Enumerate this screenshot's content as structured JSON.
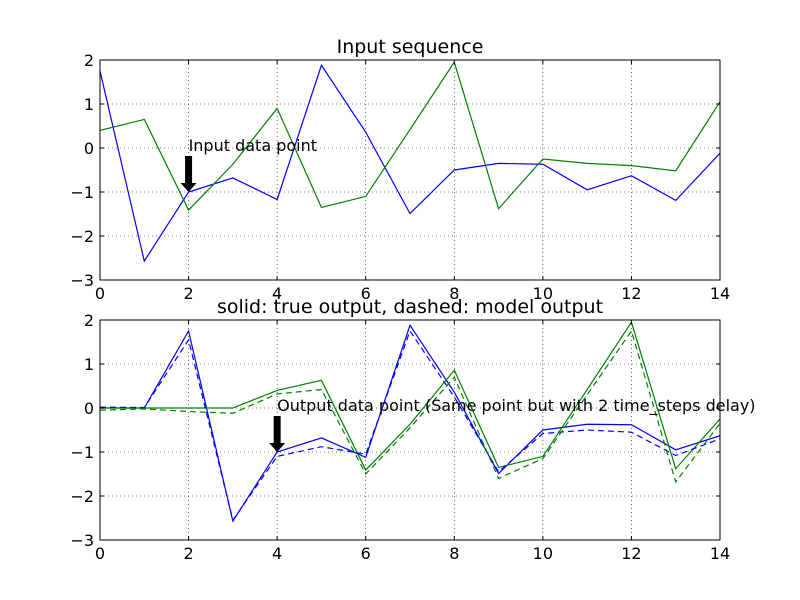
{
  "chart_data": [
    {
      "type": "line",
      "title": "Input sequence",
      "xlim": [
        0,
        14
      ],
      "ylim": [
        -3,
        2
      ],
      "xticks": [
        "0",
        "2",
        "4",
        "6",
        "8",
        "10",
        "12",
        "14"
      ],
      "yticks": [
        "−3",
        "−2",
        "−1",
        "0",
        "1",
        "2"
      ],
      "grid": true,
      "x": [
        0,
        1,
        2,
        3,
        4,
        5,
        6,
        7,
        8,
        9,
        10,
        11,
        12,
        13,
        14
      ],
      "series": [
        {
          "color": "#0000ff",
          "linestyle": "solid",
          "values": [
            1.75,
            -2.57,
            -1.0,
            -0.68,
            -1.17,
            1.88,
            0.36,
            -1.49,
            -0.5,
            -0.35,
            -0.37,
            -0.95,
            -0.63,
            -1.19,
            -0.12
          ]
        },
        {
          "color": "#008000",
          "linestyle": "solid",
          "values": [
            0.4,
            0.65,
            -1.41,
            -0.37,
            0.9,
            -1.35,
            -1.1,
            0.42,
            1.95,
            -1.38,
            -0.25,
            -0.35,
            -0.4,
            -0.52,
            1.05
          ]
        }
      ],
      "annotation": {
        "text": "Input data point",
        "x": 2,
        "y": -1.0,
        "text_x": 2,
        "text_y": 0.0
      }
    },
    {
      "type": "line",
      "title": "solid: true output, dashed: model output",
      "xlim": [
        0,
        14
      ],
      "ylim": [
        -3,
        2
      ],
      "xticks": [
        "0",
        "2",
        "4",
        "6",
        "8",
        "10",
        "12",
        "14"
      ],
      "yticks": [
        "−3",
        "−2",
        "−1",
        "0",
        "1",
        "2"
      ],
      "grid": true,
      "x": [
        0,
        1,
        2,
        3,
        4,
        5,
        6,
        7,
        8,
        9,
        10,
        11,
        12,
        13,
        14
      ],
      "series": [
        {
          "color": "#0000ff",
          "linestyle": "solid",
          "values": [
            0.0,
            0.0,
            1.75,
            -2.57,
            -1.0,
            -0.68,
            -1.12,
            1.88,
            0.36,
            -1.49,
            -0.5,
            -0.37,
            -0.38,
            -0.95,
            -0.63
          ]
        },
        {
          "color": "#008000",
          "linestyle": "solid",
          "values": [
            0.0,
            0.0,
            0.0,
            0.0,
            0.4,
            0.63,
            -1.41,
            -0.37,
            0.86,
            -1.35,
            -1.1,
            0.42,
            1.95,
            -1.38,
            -0.25
          ]
        },
        {
          "color": "#0000ff",
          "linestyle": "dashed",
          "values": [
            0.02,
            0.01,
            1.55,
            -2.55,
            -1.1,
            -0.88,
            -1.05,
            1.75,
            0.25,
            -1.45,
            -0.58,
            -0.5,
            -0.55,
            -1.08,
            -0.7
          ]
        },
        {
          "color": "#008000",
          "linestyle": "dashed",
          "values": [
            -0.05,
            -0.02,
            -0.08,
            -0.12,
            0.32,
            0.42,
            -1.5,
            -0.45,
            0.7,
            -1.6,
            -1.15,
            0.3,
            1.75,
            -1.68,
            -0.35
          ]
        }
      ],
      "annotation": {
        "text": "Output data point (Same point but with 2 time_steps delay)",
        "x": 4,
        "y": -1.0,
        "text_x": 4,
        "text_y": 0.0
      }
    }
  ]
}
